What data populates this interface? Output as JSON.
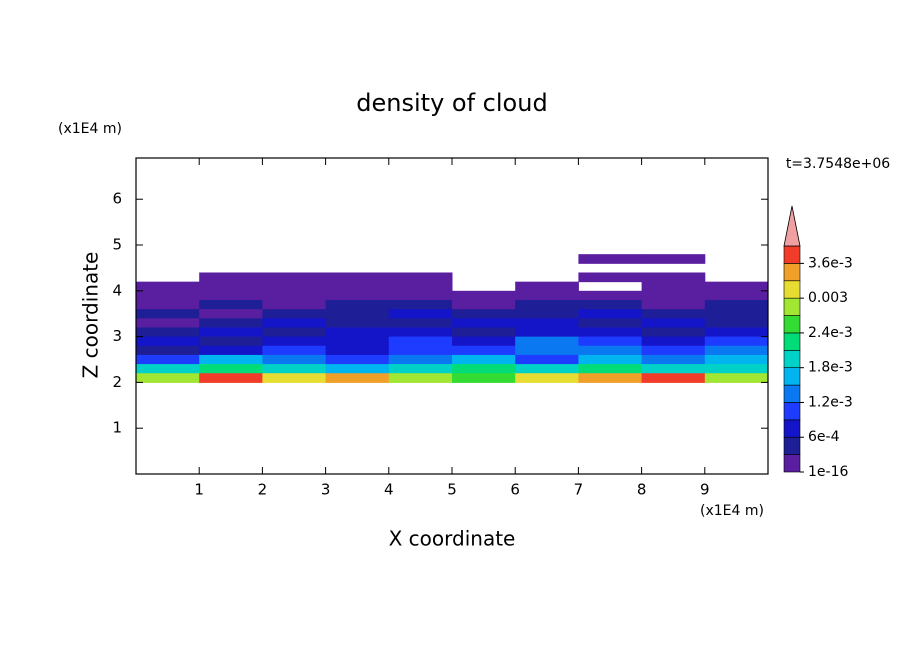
{
  "chart_data": {
    "type": "contour",
    "title": "density of cloud",
    "xlabel": "X coordinate",
    "ylabel": "Z coordinate",
    "xunit": "(x1E4 m)",
    "yunit": "(x1E4 m)",
    "time_label": "t=3.7548e+06",
    "xlim": [
      0,
      10
    ],
    "ylim": [
      0,
      6.9
    ],
    "xticks": [
      1,
      2,
      3,
      4,
      5,
      6,
      7,
      8,
      9
    ],
    "yticks": [
      1,
      2,
      3,
      4,
      5,
      6
    ],
    "field": {
      "x": [
        0.5,
        1.5,
        2.5,
        3.5,
        4.5,
        5.5,
        6.5,
        7.5,
        8.5,
        9.5
      ],
      "z": [
        4.7,
        4.5,
        4.3,
        4.1,
        3.9,
        3.7,
        3.5,
        3.3,
        3.1,
        2.9,
        2.7,
        2.5,
        2.3,
        2.1
      ],
      "values": [
        [
          null,
          null,
          null,
          null,
          null,
          null,
          null,
          0.0001,
          0.0001,
          null
        ],
        [
          null,
          null,
          null,
          null,
          null,
          null,
          null,
          null,
          null,
          null
        ],
        [
          null,
          0.0001,
          0.0001,
          0.0001,
          0.0001,
          null,
          null,
          0.0001,
          0.0001,
          null
        ],
        [
          0.0001,
          0.0001,
          0.0001,
          0.0001,
          0.0001,
          null,
          0.0001,
          null,
          0.0001,
          0.0001
        ],
        [
          0.0002,
          0.0002,
          0.0001,
          0.0002,
          0.0002,
          0.0002,
          0.0001,
          0.0002,
          0.0002,
          0.0002
        ],
        [
          0.0002,
          0.0004,
          0.0002,
          0.0004,
          0.0004,
          0.0002,
          0.0004,
          0.0004,
          0.0002,
          0.0004
        ],
        [
          0.0004,
          0.0002,
          0.0004,
          0.0004,
          0.0007,
          0.0004,
          0.0004,
          0.0007,
          0.0004,
          0.0004
        ],
        [
          0.0002,
          0.0004,
          0.0007,
          0.0004,
          0.0004,
          0.0007,
          0.0007,
          0.0004,
          0.0007,
          0.0004
        ],
        [
          0.0004,
          0.0007,
          0.0004,
          0.0007,
          0.0007,
          0.0004,
          0.0007,
          0.0007,
          0.0004,
          0.0007
        ],
        [
          0.0007,
          0.0004,
          0.0007,
          0.0007,
          0.001,
          0.0007,
          0.0013,
          0.001,
          0.0007,
          0.001
        ],
        [
          0.0004,
          0.0007,
          0.001,
          0.0007,
          0.001,
          0.001,
          0.0013,
          0.0013,
          0.001,
          0.0013
        ],
        [
          0.001,
          0.0016,
          0.0013,
          0.001,
          0.0013,
          0.0016,
          0.001,
          0.0016,
          0.0013,
          0.0016
        ],
        [
          0.0019,
          0.0022,
          0.0019,
          0.0016,
          0.0019,
          0.0022,
          0.0019,
          0.0022,
          0.0019,
          0.0019
        ],
        [
          0.0028,
          0.0037,
          0.0031,
          0.0034,
          0.0028,
          0.0025,
          0.0031,
          0.0034,
          0.0037,
          0.0028
        ]
      ]
    },
    "colorbar": {
      "levels": [
        1e-16,
        0.0003,
        0.0006,
        0.0009,
        0.0012,
        0.0015,
        0.0018,
        0.0021,
        0.0024,
        0.0027,
        0.003,
        0.0033,
        0.0036,
        0.0039
      ],
      "colors": [
        "#5a1ea0",
        "#1e1e96",
        "#1414c8",
        "#1e3cff",
        "#0a78f0",
        "#00b4f0",
        "#00d2c8",
        "#00dc78",
        "#32dc32",
        "#a0e632",
        "#e6dc32",
        "#f0a028",
        "#f03c28"
      ],
      "over_color": "#f0a0a0",
      "ticks": [
        {
          "value": 1e-16,
          "label": "1e-16"
        },
        {
          "value": 0.0006,
          "label": "6e-4"
        },
        {
          "value": 0.0012,
          "label": "1.2e-3"
        },
        {
          "value": 0.0018,
          "label": "1.8e-3"
        },
        {
          "value": 0.0024,
          "label": "2.4e-3"
        },
        0.003,
        {
          "value": 0.0036,
          "label": "3.6e-3"
        }
      ]
    }
  }
}
